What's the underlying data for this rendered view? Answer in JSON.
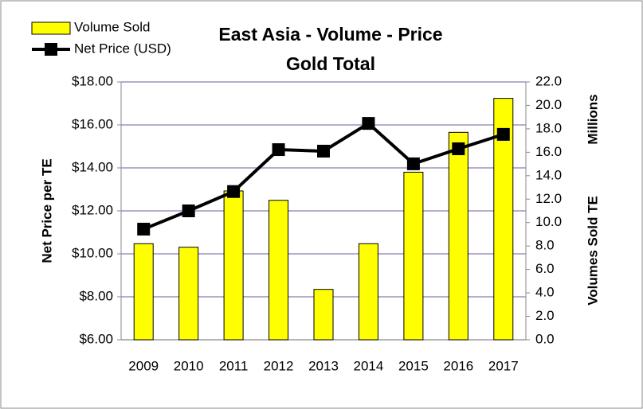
{
  "chart_data": {
    "type": "bar-line",
    "title": "East Asia - Volume - Price",
    "subtitle": "Gold Total",
    "ylabel": "Net Price per TE",
    "y2label": "Volumes Sold TE",
    "y2unit": "Millions",
    "categories": [
      "2009",
      "2010",
      "2011",
      "2012",
      "2013",
      "2014",
      "2015",
      "2016",
      "2017"
    ],
    "series": [
      {
        "name": "Volume Sold",
        "type": "bar",
        "axis": "y2",
        "color": "#ffff00",
        "values": [
          8.2,
          7.9,
          12.7,
          11.9,
          4.3,
          8.2,
          14.3,
          17.7,
          20.6
        ]
      },
      {
        "name": "Net Price (USD)",
        "type": "line",
        "color": "#000000",
        "values": [
          11.15,
          12.0,
          12.9,
          14.85,
          14.78,
          16.07,
          14.19,
          14.89,
          15.56
        ]
      }
    ],
    "ylim": [
      6,
      18
    ],
    "yticks": [
      {
        "value": 6,
        "label": "$6.00"
      },
      {
        "value": 8,
        "label": "$8.00"
      },
      {
        "value": 10,
        "label": "$10.00"
      },
      {
        "value": 12,
        "label": "$12.00"
      },
      {
        "value": 14,
        "label": "$14.00"
      },
      {
        "value": 16,
        "label": "$16.00"
      },
      {
        "value": 18,
        "label": "$18.00"
      }
    ],
    "y2lim": [
      0,
      22
    ],
    "y2ticks": [
      {
        "value": 0,
        "label": "0.0"
      },
      {
        "value": 2,
        "label": "2.0"
      },
      {
        "value": 4,
        "label": "4.0"
      },
      {
        "value": 6,
        "label": "6.0"
      },
      {
        "value": 8,
        "label": "8.0"
      },
      {
        "value": 10,
        "label": "10.0"
      },
      {
        "value": 12,
        "label": "12.0"
      },
      {
        "value": 14,
        "label": "14.0"
      },
      {
        "value": 16,
        "label": "16.0"
      },
      {
        "value": 18,
        "label": "18.0"
      },
      {
        "value": 20,
        "label": "20.0"
      },
      {
        "value": 22,
        "label": "22.0"
      }
    ],
    "grid": true,
    "legend": "upper left"
  }
}
